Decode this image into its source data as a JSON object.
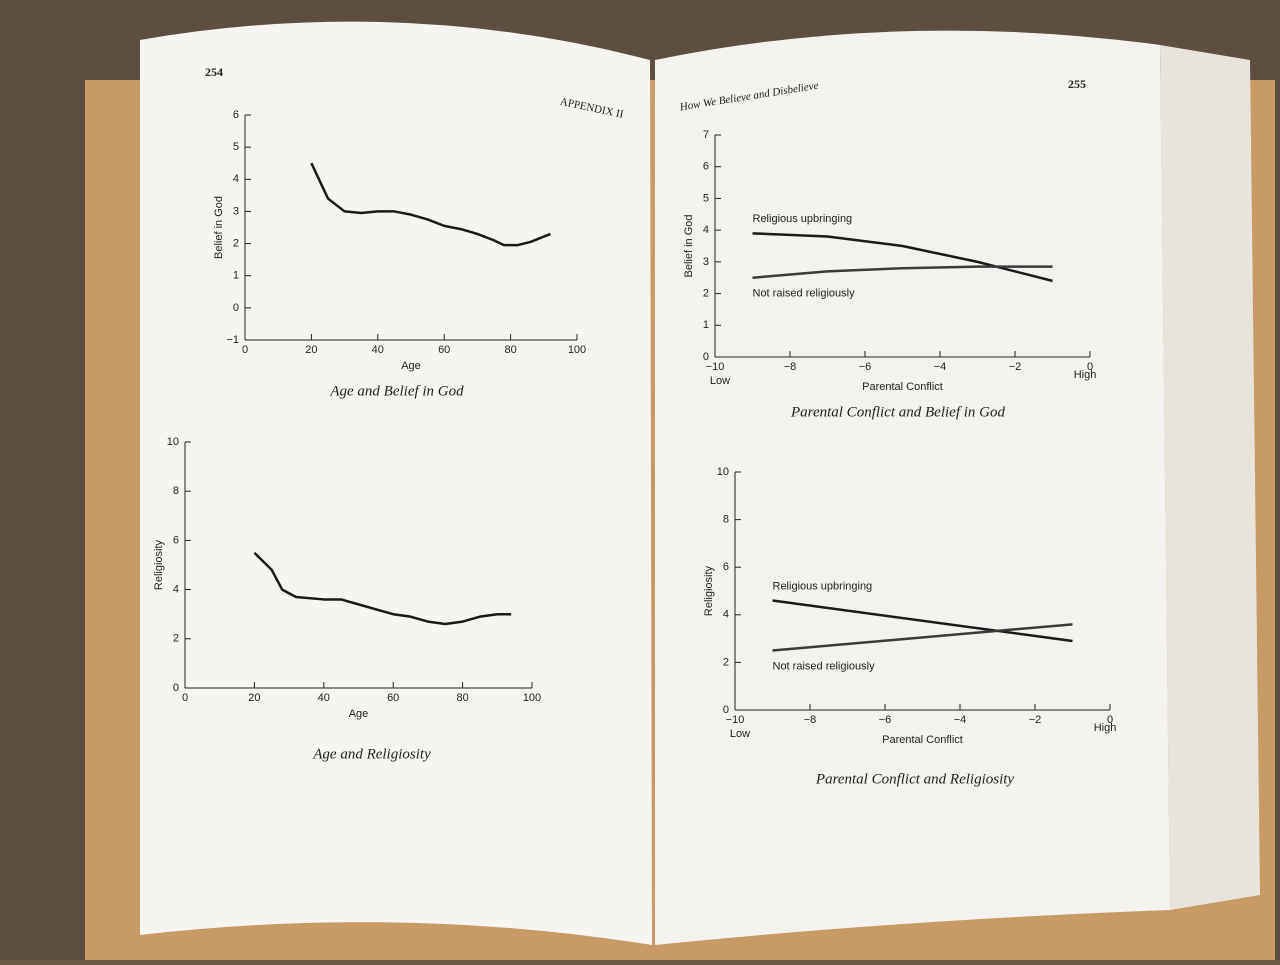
{
  "pages": {
    "left_number": "254",
    "left_header": "APPENDIX II",
    "right_header": "How We Believe and Disbelieve",
    "right_number": "255"
  },
  "chart_data": [
    {
      "type": "line",
      "title": "Age and Belief in God",
      "x_label": "Age",
      "y_label": "Belief in God",
      "color": "#1a1a1a",
      "x": [
        20,
        25,
        30,
        35,
        40,
        45,
        50,
        55,
        60,
        65,
        70,
        75,
        78,
        82,
        86,
        92
      ],
      "values": [
        4.5,
        3.4,
        3.0,
        2.95,
        3.0,
        3.0,
        2.9,
        2.75,
        2.55,
        2.45,
        2.3,
        2.1,
        1.95,
        1.95,
        2.05,
        2.3
      ],
      "xlim": [
        0,
        100
      ],
      "xticks": [
        0,
        20,
        40,
        60,
        80,
        100
      ],
      "ylim": [
        -1,
        6
      ],
      "yticks": [
        {
          "value": -1,
          "label": "−1"
        },
        0,
        1,
        2,
        3,
        4,
        5,
        6
      ]
    },
    {
      "type": "line",
      "title": "Age and Religiosity",
      "x_label": "Age",
      "y_label": "Religiosity",
      "color": "#1a1a1a",
      "x": [
        20,
        25,
        28,
        32,
        40,
        45,
        50,
        55,
        60,
        65,
        70,
        75,
        80,
        85,
        90,
        94
      ],
      "values": [
        5.5,
        4.8,
        4.0,
        3.7,
        3.6,
        3.6,
        3.4,
        3.2,
        3.0,
        2.9,
        2.7,
        2.6,
        2.7,
        2.9,
        3.0,
        3.0
      ],
      "xlim": [
        0,
        100
      ],
      "xticks": [
        0,
        20,
        40,
        60,
        80,
        100
      ],
      "ylim": [
        0,
        10
      ],
      "yticks": [
        0,
        2,
        4,
        6,
        8,
        10
      ]
    },
    {
      "type": "line",
      "title": "Parental Conflict and Belief in God",
      "x_label": "Parental Conflict",
      "y_label": "Belief in God",
      "x_end_labels": [
        "Low",
        "High"
      ],
      "x": [
        -9,
        -7,
        -5,
        -3,
        -1
      ],
      "series": [
        {
          "name": "Religious upbringing",
          "color": "#1a1a1a",
          "values": [
            3.9,
            3.8,
            3.5,
            3.0,
            2.4
          ]
        },
        {
          "name": "Not raised religiously",
          "color": "#3a3a3a",
          "values": [
            2.5,
            2.7,
            2.8,
            2.85,
            2.85
          ]
        }
      ],
      "xlim": [
        -10,
        0
      ],
      "xticks": [
        {
          "value": -10,
          "label": "−10"
        },
        {
          "value": -8,
          "label": "−8"
        },
        {
          "value": -6,
          "label": "−6"
        },
        {
          "value": -4,
          "label": "−4"
        },
        {
          "value": -2,
          "label": "−2"
        },
        0
      ],
      "ylim": [
        0,
        7
      ],
      "yticks": [
        0,
        1,
        2,
        3,
        4,
        5,
        6,
        7
      ]
    },
    {
      "type": "line",
      "title": "Parental Conflict and Religiosity",
      "x_label": "Parental Conflict",
      "y_label": "Religiosity",
      "x_end_labels": [
        "Low",
        "High"
      ],
      "x": [
        -9,
        -1
      ],
      "series": [
        {
          "name": "Religious upbringing",
          "color": "#1a1a1a",
          "values": [
            4.6,
            2.9
          ]
        },
        {
          "name": "Not raised religiously",
          "color": "#3a3a3a",
          "values": [
            2.5,
            3.6
          ]
        }
      ],
      "xlim": [
        -10,
        0
      ],
      "xticks": [
        {
          "value": -10,
          "label": "−10"
        },
        {
          "value": -8,
          "label": "−8"
        },
        {
          "value": -6,
          "label": "−6"
        },
        {
          "value": -4,
          "label": "−4"
        },
        {
          "value": -2,
          "label": "−2"
        },
        0
      ],
      "ylim": [
        0,
        10
      ],
      "yticks": [
        0,
        2,
        4,
        6,
        8,
        10
      ]
    }
  ]
}
